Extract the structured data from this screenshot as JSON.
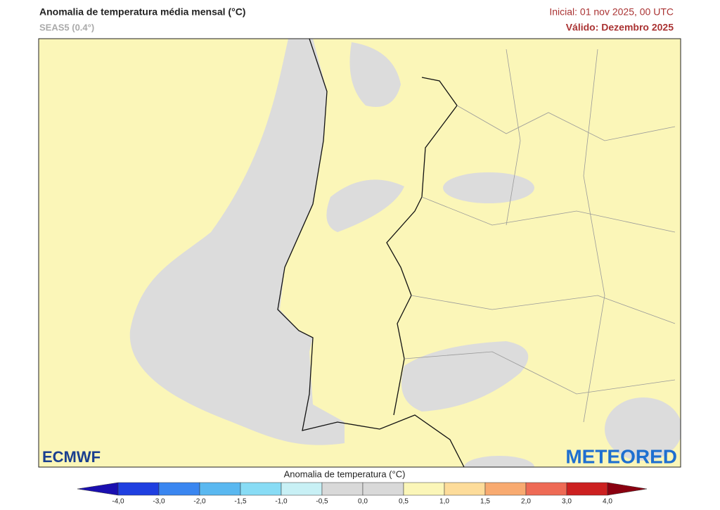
{
  "header": {
    "title": "Anomalia de temperatura média mensal (°C)",
    "subtitle": "SEAS5 (0.4°)",
    "initial": "Inicial: 01 nov 2025, 00 UTC",
    "valid": "Válido: Dezembro 2025"
  },
  "logos": {
    "left": "ECMWF",
    "right": "METEORED"
  },
  "colorbar": {
    "title": "Anomalia de temperatura (°C)",
    "ticks": [
      "-4,0",
      "-3,0",
      "-2,0",
      "-1,5",
      "-1,0",
      "-0,5",
      "0,0",
      "0,5",
      "1,0",
      "1,5",
      "2,0",
      "3,0",
      "4,0"
    ],
    "colors": [
      "#1a0fb0",
      "#1f3fe0",
      "#3a86f0",
      "#5ab8f0",
      "#88dcf5",
      "#c8f0f5",
      "#d9d9d9",
      "#d9d9d9",
      "#fbf6b8",
      "#fddc9a",
      "#f8aa70",
      "#ee6a55",
      "#cc2020",
      "#8a0010"
    ]
  }
}
